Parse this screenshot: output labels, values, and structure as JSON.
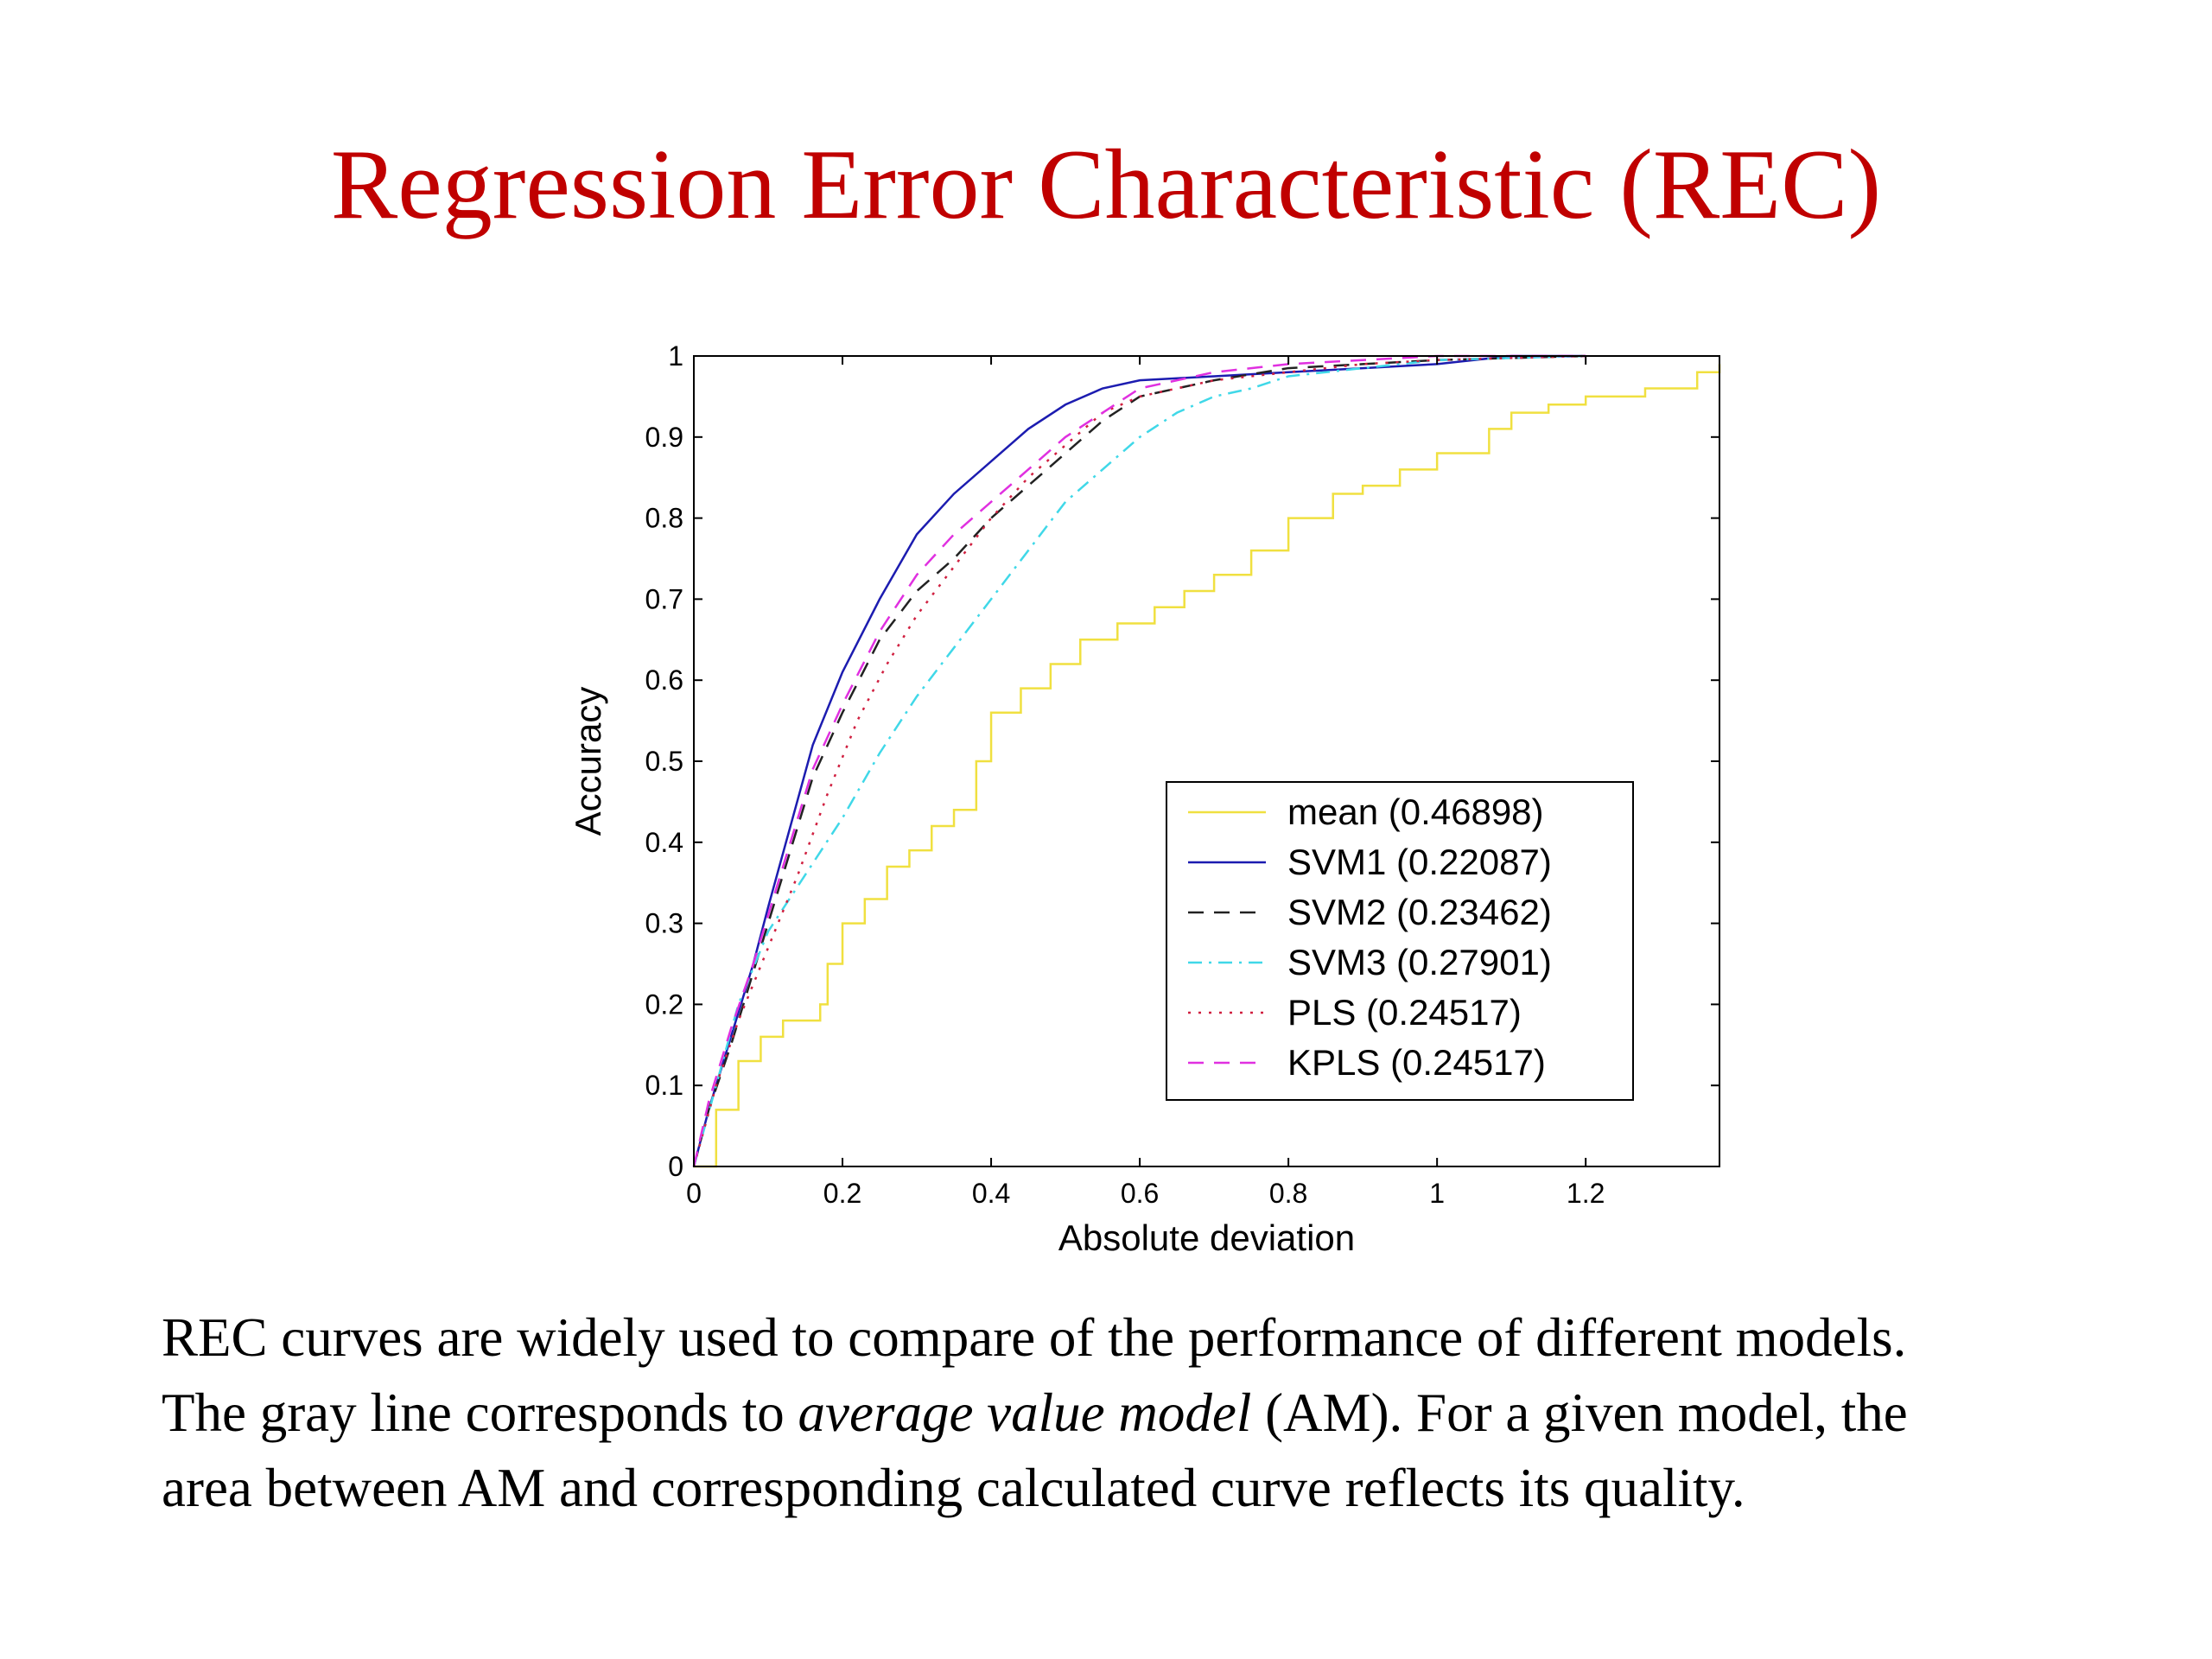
{
  "slide": {
    "title": "Regression Error Characteristic (REC)",
    "caption": {
      "line1": "REC curves are widely used to compare of the performance of different models.",
      "line2_before": "The gray line corresponds to ",
      "line2_italic": "average value model",
      "line2_after": " (AM). For a given model, the",
      "line3": "area between AM and corresponding calculated curve reflects its quality."
    }
  },
  "colors": {
    "title": "#c00000",
    "axis": "#000000"
  },
  "chart_data": {
    "type": "line",
    "title": "",
    "xlabel": "Absolute deviation",
    "ylabel": "Accuracy",
    "xlim": [
      0,
      1.38
    ],
    "ylim": [
      0,
      1
    ],
    "xticks": [
      0,
      0.2,
      0.4,
      0.6,
      0.8,
      1,
      1.2
    ],
    "xtick_labels": [
      "0",
      "0.2",
      "0.4",
      "0.6",
      "0.8",
      "1",
      "1.2"
    ],
    "yticks": [
      0,
      0.1,
      0.2,
      0.3,
      0.4,
      0.5,
      0.6,
      0.7,
      0.8,
      0.9,
      1
    ],
    "ytick_labels": [
      "0",
      "0.1",
      "0.2",
      "0.3",
      "0.4",
      "0.5",
      "0.6",
      "0.7",
      "0.8",
      "0.9",
      "1"
    ],
    "grid": false,
    "legend_position": "lower-right",
    "series": [
      {
        "name": "mean (0.46898)",
        "color": "#f0e040",
        "dash": "solid",
        "step": true,
        "x": [
          0,
          0.03,
          0.06,
          0.09,
          0.12,
          0.17,
          0.18,
          0.2,
          0.23,
          0.26,
          0.29,
          0.32,
          0.35,
          0.38,
          0.4,
          0.44,
          0.48,
          0.52,
          0.57,
          0.62,
          0.66,
          0.7,
          0.75,
          0.8,
          0.86,
          0.9,
          0.95,
          1.0,
          1.07,
          1.1,
          1.15,
          1.2,
          1.28,
          1.35,
          1.38
        ],
        "y": [
          0,
          0.07,
          0.13,
          0.16,
          0.18,
          0.2,
          0.25,
          0.3,
          0.33,
          0.37,
          0.39,
          0.42,
          0.44,
          0.5,
          0.56,
          0.59,
          0.62,
          0.65,
          0.67,
          0.69,
          0.71,
          0.73,
          0.76,
          0.8,
          0.83,
          0.84,
          0.86,
          0.88,
          0.91,
          0.93,
          0.94,
          0.95,
          0.96,
          0.98,
          0.99
        ]
      },
      {
        "name": "SVM1 (0.22087)",
        "color": "#1c1cb0",
        "dash": "solid",
        "x": [
          0,
          0.02,
          0.05,
          0.08,
          0.1,
          0.13,
          0.16,
          0.2,
          0.25,
          0.3,
          0.35,
          0.4,
          0.45,
          0.5,
          0.55,
          0.6,
          0.7,
          0.8,
          0.9,
          1.0,
          1.1,
          1.2
        ],
        "y": [
          0,
          0.07,
          0.16,
          0.25,
          0.32,
          0.42,
          0.52,
          0.61,
          0.7,
          0.78,
          0.83,
          0.87,
          0.91,
          0.94,
          0.96,
          0.97,
          0.975,
          0.98,
          0.985,
          0.99,
          1.0,
          1.0
        ]
      },
      {
        "name": "SVM2 (0.23462)",
        "color": "#222222",
        "dash": "dash",
        "x": [
          0,
          0.02,
          0.05,
          0.08,
          0.1,
          0.13,
          0.16,
          0.2,
          0.25,
          0.3,
          0.35,
          0.4,
          0.45,
          0.5,
          0.55,
          0.6,
          0.7,
          0.8,
          0.9,
          1.0,
          1.2
        ],
        "y": [
          0,
          0.07,
          0.15,
          0.24,
          0.3,
          0.39,
          0.48,
          0.56,
          0.65,
          0.71,
          0.75,
          0.8,
          0.84,
          0.88,
          0.92,
          0.95,
          0.97,
          0.985,
          0.99,
          0.995,
          1.0
        ]
      },
      {
        "name": "SVM3 (0.27901)",
        "color": "#40d8e8",
        "dash": "dashdot",
        "x": [
          0,
          0.03,
          0.06,
          0.1,
          0.15,
          0.2,
          0.25,
          0.3,
          0.35,
          0.4,
          0.45,
          0.5,
          0.55,
          0.6,
          0.65,
          0.7,
          0.75,
          0.8,
          0.9,
          1.0,
          1.2
        ],
        "y": [
          0,
          0.1,
          0.2,
          0.29,
          0.36,
          0.43,
          0.51,
          0.58,
          0.64,
          0.7,
          0.76,
          0.82,
          0.86,
          0.9,
          0.93,
          0.95,
          0.96,
          0.975,
          0.985,
          0.995,
          1.0
        ]
      },
      {
        "name": "PLS (0.24517)",
        "color": "#d02040",
        "dash": "dot",
        "x": [
          0,
          0.03,
          0.06,
          0.1,
          0.14,
          0.18,
          0.22,
          0.26,
          0.3,
          0.35,
          0.4,
          0.45,
          0.5,
          0.55,
          0.6,
          0.7,
          0.8,
          0.9,
          1.0,
          1.2
        ],
        "y": [
          0,
          0.1,
          0.18,
          0.27,
          0.36,
          0.46,
          0.55,
          0.62,
          0.68,
          0.74,
          0.8,
          0.85,
          0.89,
          0.93,
          0.95,
          0.97,
          0.98,
          0.99,
          0.995,
          1.0
        ]
      },
      {
        "name": "KPLS (0.24517)",
        "color": "#e030e0",
        "dash": "dash",
        "x": [
          0,
          0.02,
          0.05,
          0.08,
          0.1,
          0.13,
          0.16,
          0.2,
          0.25,
          0.3,
          0.35,
          0.4,
          0.45,
          0.5,
          0.55,
          0.6,
          0.7,
          0.8,
          0.9,
          1.0,
          1.2
        ],
        "y": [
          0,
          0.08,
          0.17,
          0.25,
          0.31,
          0.4,
          0.49,
          0.57,
          0.66,
          0.73,
          0.78,
          0.82,
          0.86,
          0.9,
          0.93,
          0.96,
          0.98,
          0.99,
          0.995,
          1.0,
          1.0
        ]
      }
    ]
  }
}
